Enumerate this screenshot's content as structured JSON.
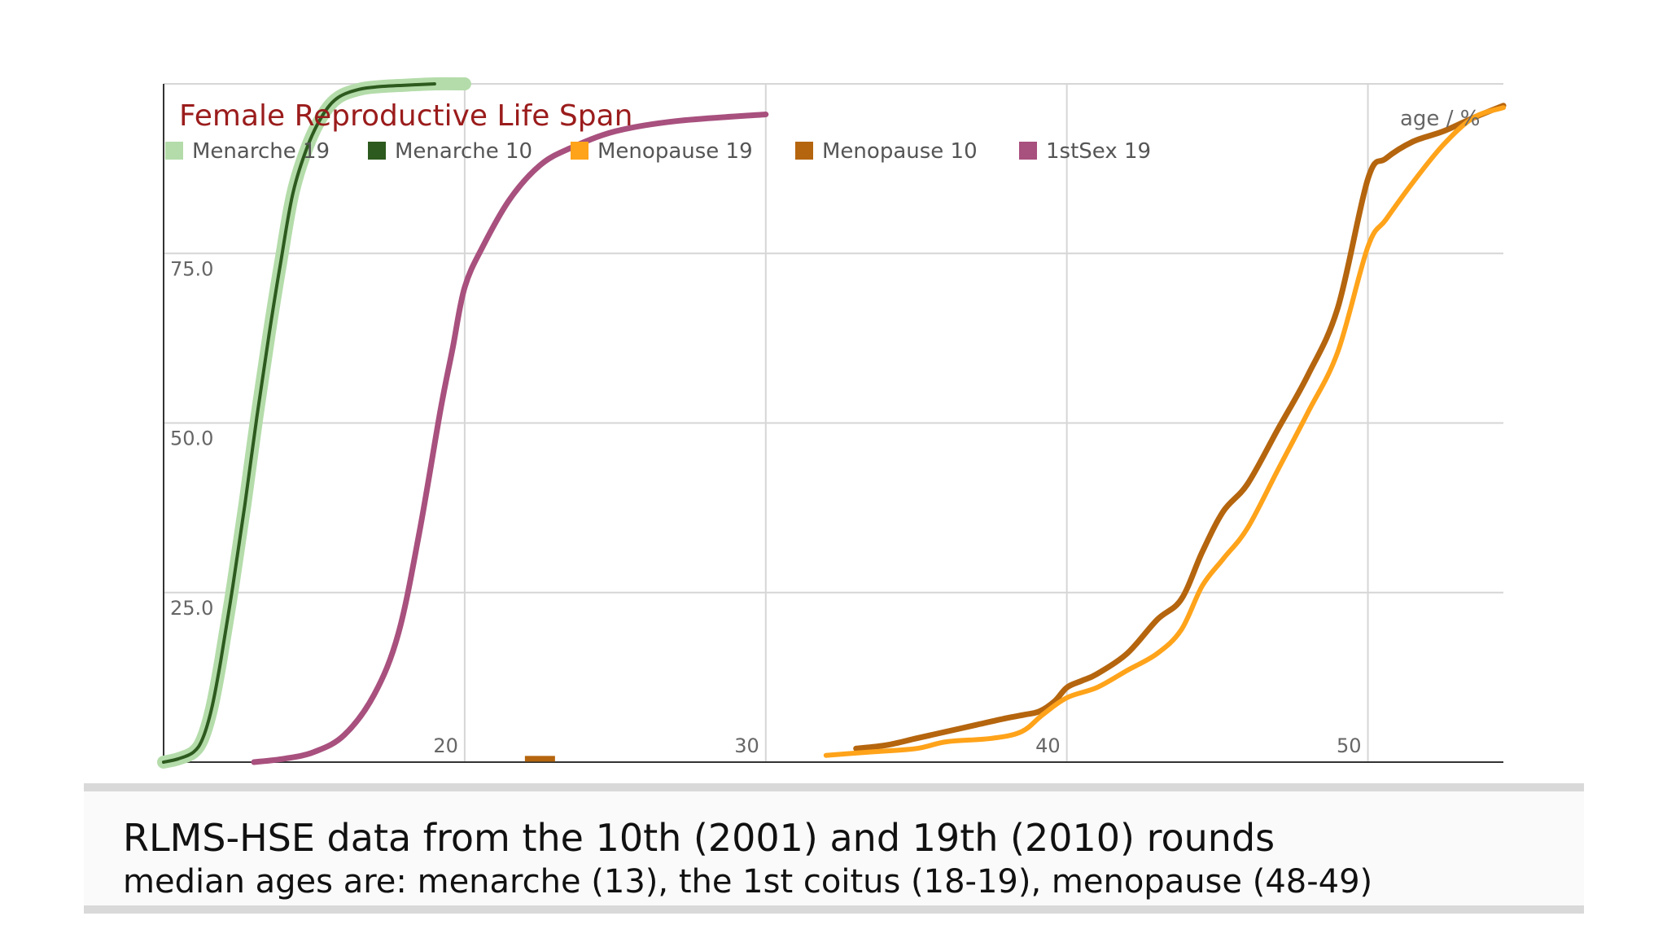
{
  "chart_data": {
    "type": "line",
    "title": "Female Reproductive Life Span",
    "axis_note": "age / %",
    "x_ticks": [
      "20",
      "30",
      "40",
      "50"
    ],
    "y_ticks": [
      "25.0",
      "50.0",
      "75.0"
    ],
    "xlim": [
      10,
      54.5
    ],
    "ylim": [
      0,
      100
    ],
    "grid": true,
    "legend_position": "top-left",
    "series": [
      {
        "name": "Menarche 19",
        "color": "#b4dcaa",
        "x": [
          10.0,
          10.5,
          11.0,
          11.3,
          11.6,
          11.9,
          12.3,
          12.7,
          13.1,
          13.5,
          13.9,
          14.3,
          14.8,
          15.3,
          15.8,
          16.5,
          17.2,
          18.0,
          19.0,
          20.0
        ],
        "y": [
          0,
          0.5,
          1.5,
          3.5,
          8,
          15,
          26,
          38,
          51,
          63,
          74,
          84,
          91,
          95.5,
          98,
          99.2,
          99.6,
          99.8,
          100,
          100
        ]
      },
      {
        "name": "Menarche 10",
        "color": "#2d5a1e",
        "x": [
          10.0,
          10.5,
          11.0,
          11.3,
          11.6,
          11.9,
          12.3,
          12.7,
          13.1,
          13.5,
          13.9,
          14.3,
          14.8,
          15.3,
          15.8,
          16.5,
          17.2,
          18.0,
          19.0
        ],
        "y": [
          0,
          0.5,
          1.5,
          3.5,
          8,
          15,
          26,
          38,
          51,
          63,
          74,
          84,
          91,
          95.5,
          98,
          99.2,
          99.6,
          99.8,
          100
        ]
      },
      {
        "name": "Menopause 19",
        "color": "#ffa31a",
        "x": [
          32.0,
          33.5,
          35.0,
          36.0,
          37.5,
          38.5,
          39.2,
          40.0,
          41.0,
          42.0,
          43.0,
          43.8,
          44.5,
          45.2,
          46.0,
          47.0,
          48.0,
          49.0,
          50.0,
          50.6,
          51.5,
          52.5,
          53.5,
          54.5
        ],
        "y": [
          1,
          1.5,
          2,
          3,
          3.5,
          4.5,
          7,
          9.5,
          11,
          13.5,
          16,
          19.5,
          26,
          30,
          34.5,
          43,
          51.5,
          60.5,
          76,
          80,
          85.5,
          91,
          95,
          96.5
        ]
      },
      {
        "name": "Menopause 10",
        "color": "#b5650e",
        "x": [
          33.0,
          34.0,
          35.0,
          36.0,
          37.0,
          38.0,
          38.6,
          39.1,
          39.6,
          40.0,
          40.5,
          41.0,
          42.0,
          43.0,
          43.8,
          44.5,
          45.2,
          46.0,
          47.0,
          48.0,
          49.0,
          50.0,
          50.6,
          51.5,
          52.5,
          53.5,
          54.5
        ],
        "y": [
          2,
          2.5,
          3.5,
          4.5,
          5.5,
          6.5,
          7,
          7.5,
          9,
          11,
          12,
          13,
          16,
          21,
          24,
          31,
          37,
          41,
          49,
          57,
          67,
          86,
          89,
          91.5,
          93,
          95,
          96.8
        ]
      },
      {
        "name": "1stSex 19",
        "color": "#a8507e",
        "x": [
          13.0,
          14.0,
          15.0,
          16.0,
          17.0,
          17.8,
          18.5,
          19.2,
          19.6,
          20.0,
          20.6,
          21.5,
          22.5,
          23.5,
          25.0,
          27.0,
          30.0
        ],
        "y": [
          0,
          0.5,
          1.5,
          4,
          10,
          19,
          34,
          52,
          61,
          70,
          76,
          83,
          88,
          90.5,
          93,
          94.5,
          95.5
        ]
      }
    ],
    "stray_marks": [
      {
        "series": "Menopause 10",
        "x": [
          22.0,
          23.0
        ],
        "y": [
          0.5,
          0.5
        ]
      }
    ]
  },
  "caption": {
    "title": "RLMS-HSE data from the 10th (2001) and 19th (2010) rounds",
    "subtitle": "median ages are: menarche (13), the 1st coitus (18-19), menopause (48-49)"
  }
}
